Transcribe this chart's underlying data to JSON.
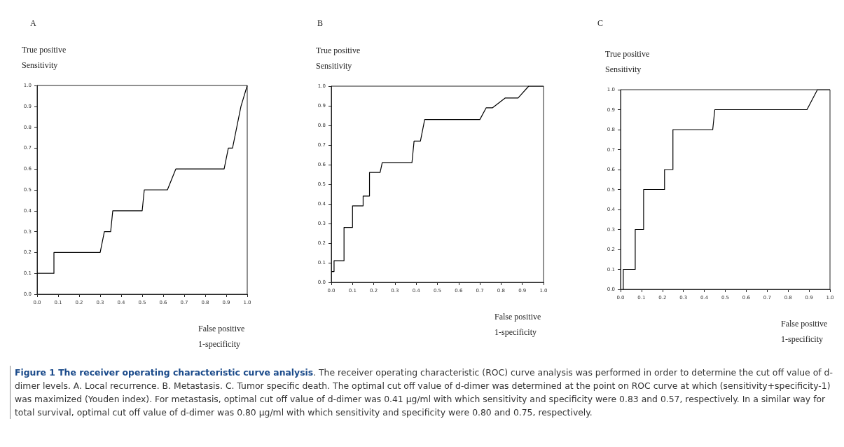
{
  "chart_data": [
    {
      "type": "line",
      "title": "A",
      "ylabel": "True positive\nSensitivity",
      "xlabel": "False positive\n1-specificity",
      "marker": "none",
      "line_style": "solid",
      "grid": false,
      "xlim": [
        0,
        1
      ],
      "ylim": [
        0,
        1
      ],
      "xticks": [
        {
          "value": 0,
          "label": "0.0"
        },
        {
          "value": 0.1,
          "label": "0.1"
        },
        {
          "value": 0.2,
          "label": "0.2"
        },
        {
          "value": 0.3,
          "label": "0.3"
        },
        {
          "value": 0.4,
          "label": "0.4"
        },
        {
          "value": 0.5,
          "label": "0.5"
        },
        {
          "value": 0.6,
          "label": "0.6"
        },
        {
          "value": 0.7,
          "label": "0.7"
        },
        {
          "value": 0.8,
          "label": "0.8"
        },
        {
          "value": 0.9,
          "label": "0.9"
        },
        {
          "value": 1,
          "label": "1.0"
        }
      ],
      "yticks": [
        {
          "value": 0,
          "label": "0.0"
        },
        {
          "value": 0.1,
          "label": "0.1"
        },
        {
          "value": 0.2,
          "label": "0.2"
        },
        {
          "value": 0.3,
          "label": "0.3"
        },
        {
          "value": 0.4,
          "label": "0.4"
        },
        {
          "value": 0.5,
          "label": "0.5"
        },
        {
          "value": 0.6,
          "label": "0.6"
        },
        {
          "value": 0.7,
          "label": "0.7"
        },
        {
          "value": 0.8,
          "label": "0.8"
        },
        {
          "value": 0.9,
          "label": "0.9"
        },
        {
          "value": 1,
          "label": "1.0"
        }
      ],
      "series": [
        {
          "color": "#000000",
          "x": [
            0,
            0.08,
            0.08,
            0.3,
            0.32,
            0.35,
            0.36,
            0.5,
            0.51,
            0.62,
            0.66,
            0.89,
            0.91,
            0.93,
            0.97,
            1
          ],
          "values": [
            0.1,
            0.1,
            0.2,
            0.2,
            0.3,
            0.3,
            0.4,
            0.4,
            0.5,
            0.5,
            0.6,
            0.6,
            0.7,
            0.7,
            0.9,
            1
          ]
        }
      ],
      "annotations": [
        "Figure 1 The receiver operating characteristic curve analysis",
        ". The receiver operating characteristic (ROC) curve analysis was performed in order to determine the cut off value of d-dimer levels. A. Local recurrence. B. Metastasis. C. Tumor specific death. The optimal cut off value of d-dimer was determined at the point on ROC curve at which (sensitivity+specificity-1) was maximized (Youden index). For metastasis, optimal cut off value of d-dimer was 0.41 µg/ml with which sensitivity and specificity were 0.83 and 0.57, respectively. In a similar way for total survival, optimal cut off value of d-dimer was 0.80 µg/ml with which sensitivity and specificity were 0.80 and 0.75, respectively."
      ]
    },
    {
      "type": "line",
      "title": "B",
      "ylabel": "True positive\nSensitivity",
      "xlabel": "False positive\n1-specificity",
      "marker": "none",
      "line_style": "solid",
      "grid": false,
      "xlim": [
        0,
        1
      ],
      "ylim": [
        0,
        1
      ],
      "xticks": [
        {
          "value": 0,
          "label": "0.0"
        },
        {
          "value": 0.1,
          "label": "0.1"
        },
        {
          "value": 0.2,
          "label": "0.2"
        },
        {
          "value": 0.3,
          "label": "0.3"
        },
        {
          "value": 0.4,
          "label": "0.4"
        },
        {
          "value": 0.5,
          "label": "0.5"
        },
        {
          "value": 0.6,
          "label": "0.6"
        },
        {
          "value": 0.7,
          "label": "0.7"
        },
        {
          "value": 0.8,
          "label": "0.8"
        },
        {
          "value": 0.9,
          "label": "0.9"
        },
        {
          "value": 1,
          "label": "1.0"
        }
      ],
      "yticks": [
        {
          "value": 0,
          "label": "0.0"
        },
        {
          "value": 0.1,
          "label": "0.1"
        },
        {
          "value": 0.2,
          "label": "0.2"
        },
        {
          "value": 0.3,
          "label": "0.3"
        },
        {
          "value": 0.4,
          "label": "0.4"
        },
        {
          "value": 0.5,
          "label": "0.5"
        },
        {
          "value": 0.6,
          "label": "0.6"
        },
        {
          "value": 0.7,
          "label": "0.7"
        },
        {
          "value": 0.8,
          "label": "0.8"
        },
        {
          "value": 0.9,
          "label": "0.9"
        },
        {
          "value": 1,
          "label": "1.0"
        }
      ],
      "series": [
        {
          "color": "#000000",
          "x": [
            0,
            0.013,
            0.013,
            0.06,
            0.06,
            0.1,
            0.1,
            0.15,
            0.15,
            0.18,
            0.18,
            0.23,
            0.24,
            0.38,
            0.39,
            0.42,
            0.44,
            0.7,
            0.73,
            0.76,
            0.82,
            0.88,
            0.93,
            1
          ],
          "values": [
            0.055,
            0.055,
            0.11,
            0.11,
            0.28,
            0.28,
            0.39,
            0.39,
            0.44,
            0.44,
            0.56,
            0.56,
            0.61,
            0.61,
            0.72,
            0.72,
            0.83,
            0.83,
            0.89,
            0.89,
            0.94,
            0.94,
            1,
            1
          ]
        }
      ]
    },
    {
      "type": "line",
      "title": "C",
      "ylabel": "True positive\nSensitivity",
      "xlabel": "False positive\n1-specificity",
      "marker": "none",
      "line_style": "solid",
      "grid": false,
      "xlim": [
        0,
        1
      ],
      "ylim": [
        0,
        1
      ],
      "xticks": [
        {
          "value": 0,
          "label": "0.0"
        },
        {
          "value": 0.1,
          "label": "0.1"
        },
        {
          "value": 0.2,
          "label": "0.2"
        },
        {
          "value": 0.3,
          "label": "0.3"
        },
        {
          "value": 0.4,
          "label": "0.4"
        },
        {
          "value": 0.5,
          "label": "0.5"
        },
        {
          "value": 0.6,
          "label": "0.6"
        },
        {
          "value": 0.7,
          "label": "0.7"
        },
        {
          "value": 0.8,
          "label": "0.8"
        },
        {
          "value": 0.9,
          "label": "0.9"
        },
        {
          "value": 1,
          "label": "1.0"
        }
      ],
      "yticks": [
        {
          "value": 0,
          "label": "0.0"
        },
        {
          "value": 0.1,
          "label": "0.1"
        },
        {
          "value": 0.2,
          "label": "0.2"
        },
        {
          "value": 0.3,
          "label": "0.3"
        },
        {
          "value": 0.4,
          "label": "0.4"
        },
        {
          "value": 0.5,
          "label": "0.5"
        },
        {
          "value": 0.6,
          "label": "0.6"
        },
        {
          "value": 0.7,
          "label": "0.7"
        },
        {
          "value": 0.8,
          "label": "0.8"
        },
        {
          "value": 0.9,
          "label": "0.9"
        },
        {
          "value": 1,
          "label": "1.0"
        }
      ],
      "series": [
        {
          "color": "#000000",
          "x": [
            0.013,
            0.013,
            0.07,
            0.07,
            0.11,
            0.11,
            0.21,
            0.21,
            0.25,
            0.25,
            0.44,
            0.45,
            0.89,
            0.94,
            1
          ],
          "values": [
            0,
            0.1,
            0.1,
            0.3,
            0.3,
            0.5,
            0.5,
            0.6,
            0.6,
            0.8,
            0.8,
            0.9,
            0.9,
            1,
            1
          ]
        }
      ]
    }
  ]
}
